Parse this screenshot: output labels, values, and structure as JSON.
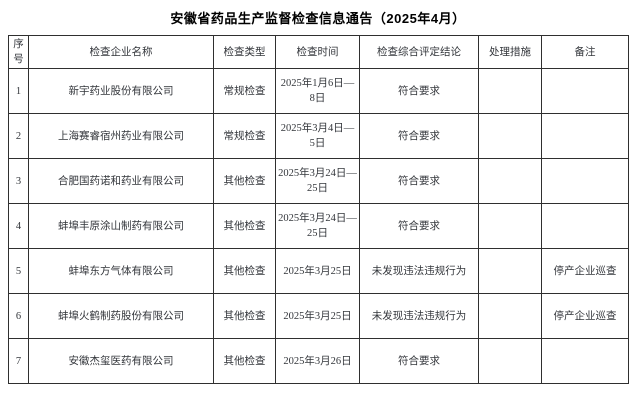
{
  "page": {
    "title": "安徽省药品生产监督检查信息通告（2025年4月）"
  },
  "colors": {
    "background": "#ffffff",
    "border": "#2f2f2f",
    "text": "#33363b",
    "title_text": "#000000"
  },
  "table": {
    "col_keys": [
      "index",
      "company-name",
      "inspection-type",
      "inspection-date",
      "conclusion",
      "measures",
      "remarks"
    ],
    "headers": [
      "序号",
      "检查企业名称",
      "检查类型",
      "检查时间",
      "检查综合评定结论",
      "处理措施",
      "备注"
    ],
    "rows": [
      [
        "1",
        "新宇药业股份有限公司",
        "常规检查",
        "2025年1月6日—\n8日",
        "符合要求",
        "",
        ""
      ],
      [
        "2",
        "上海赛睿宿州药业有限公司",
        "常规检查",
        "2025年3月4日—\n5日",
        "符合要求",
        "",
        ""
      ],
      [
        "3",
        "合肥国药诺和药业有限公司",
        "其他检查",
        "2025年3月24日—\n25日",
        "符合要求",
        "",
        ""
      ],
      [
        "4",
        "蚌埠丰原涂山制药有限公司",
        "其他检查",
        "2025年3月24日—\n25日",
        "符合要求",
        "",
        ""
      ],
      [
        "5",
        "蚌埠东方气体有限公司",
        "其他检查",
        "2025年3月25日",
        "未发现违法违规行为",
        "",
        "停产企业巡查"
      ],
      [
        "6",
        "蚌埠火鹤制药股份有限公司",
        "其他检查",
        "2025年3月25日",
        "未发现违法违规行为",
        "",
        "停产企业巡查"
      ],
      [
        "7",
        "安徽杰玺医药有限公司",
        "其他检查",
        "2025年3月26日",
        "符合要求",
        "",
        ""
      ]
    ]
  }
}
